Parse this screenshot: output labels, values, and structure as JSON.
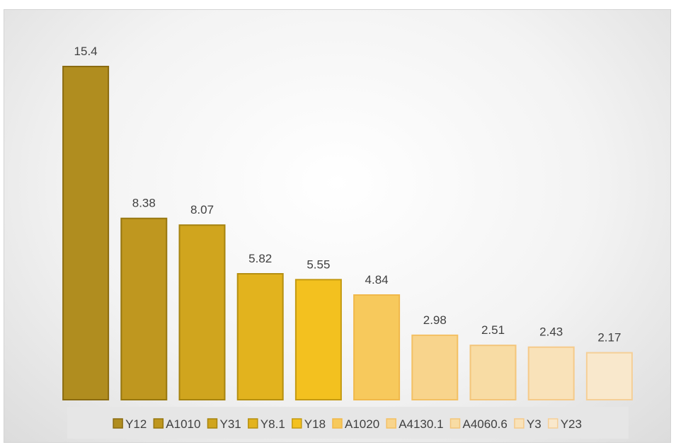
{
  "chart_data": {
    "type": "bar",
    "title": "",
    "xlabel": "",
    "ylabel": "",
    "ylim": [
      0,
      16
    ],
    "grid": false,
    "legend_position": "bottom",
    "categories": [
      "Y12",
      "A1010",
      "Y31",
      "Y8.1",
      "Y18",
      "A1020",
      "A4130.1",
      "A4060.6",
      "Y3",
      "Y23"
    ],
    "values": [
      15.4,
      8.38,
      8.07,
      5.82,
      5.55,
      4.84,
      2.98,
      2.51,
      2.43,
      2.17
    ],
    "labels": [
      "15.4",
      "8.38",
      "8.07",
      "5.82",
      "5.55",
      "4.84",
      "2.98",
      "2.51",
      "2.43",
      "2.17"
    ],
    "colors": [
      "#b08d1f",
      "#bf971f",
      "#d0a51e",
      "#e2b31e",
      "#f3c11f",
      "#f7c95c",
      "#f8d48c",
      "#f8dca4",
      "#f9e2b9",
      "#f9e8cc"
    ],
    "border_colors": [
      "#8a6b10",
      "#96760f",
      "#a6830f",
      "#b58f10",
      "#c49a12",
      "#f0b84a",
      "#f3c063",
      "#f3c57a",
      "#f5ca8a",
      "#f5cf97"
    ]
  }
}
